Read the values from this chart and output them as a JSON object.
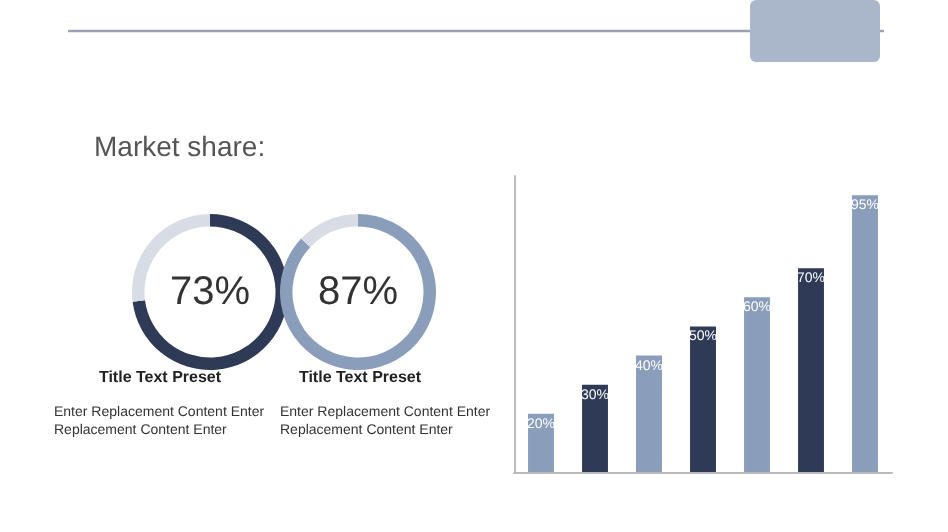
{
  "chart_data": [
    {
      "type": "donut",
      "title": "Market share:",
      "subtitle": "Title Text Preset",
      "categories": [
        null,
        null
      ],
      "values": [
        73,
        27
      ],
      "colors": [
        "#2e3a56",
        "#d8dde5"
      ],
      "value_labels": [
        "73%",
        null
      ],
      "annotations": [
        "Enter Replacement Content Enter Replacement Content Enter"
      ]
    },
    {
      "type": "donut",
      "subtitle": "Title Text Preset",
      "categories": [
        null,
        null
      ],
      "values": [
        87,
        13
      ],
      "colors": [
        "#8a9dba",
        "#d8dde5"
      ],
      "value_labels": [
        "87%",
        null
      ],
      "annotations": [
        "Enter Replacement Content Enter Replacement Content Enter"
      ]
    },
    {
      "type": "bar",
      "categories": [
        null,
        null,
        null,
        null,
        null,
        null,
        null
      ],
      "values": [
        20,
        30,
        40,
        50,
        60,
        70,
        95
      ],
      "colors": [
        "#8a9dba",
        "#2e3a56",
        "#8a9dba",
        "#2e3a56",
        "#8a9dba",
        "#2e3a56",
        "#8a9dba"
      ],
      "value_labels": [
        "20%",
        "30%",
        "40%",
        "50%",
        "60%",
        "70%",
        "95%"
      ]
    }
  ]
}
